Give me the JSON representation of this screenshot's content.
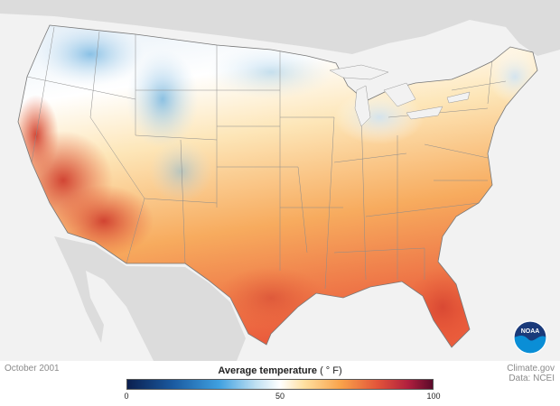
{
  "map": {
    "date": "October 2001",
    "credit_line1": "Climate.gov",
    "credit_line2": "Data: NCEI",
    "logo_text": "NOAA",
    "colors": {
      "cold": "#3fa0e0",
      "neutral": "#ffffff",
      "warm": "#f9a24a",
      "hot": "#e2543a",
      "land_bg": "#dcdcdc",
      "ocean_bg": "#f2f2f2"
    }
  },
  "legend": {
    "title": "Average temperature",
    "unit": "( ° F)",
    "min": "0",
    "mid": "50",
    "max": "100"
  }
}
